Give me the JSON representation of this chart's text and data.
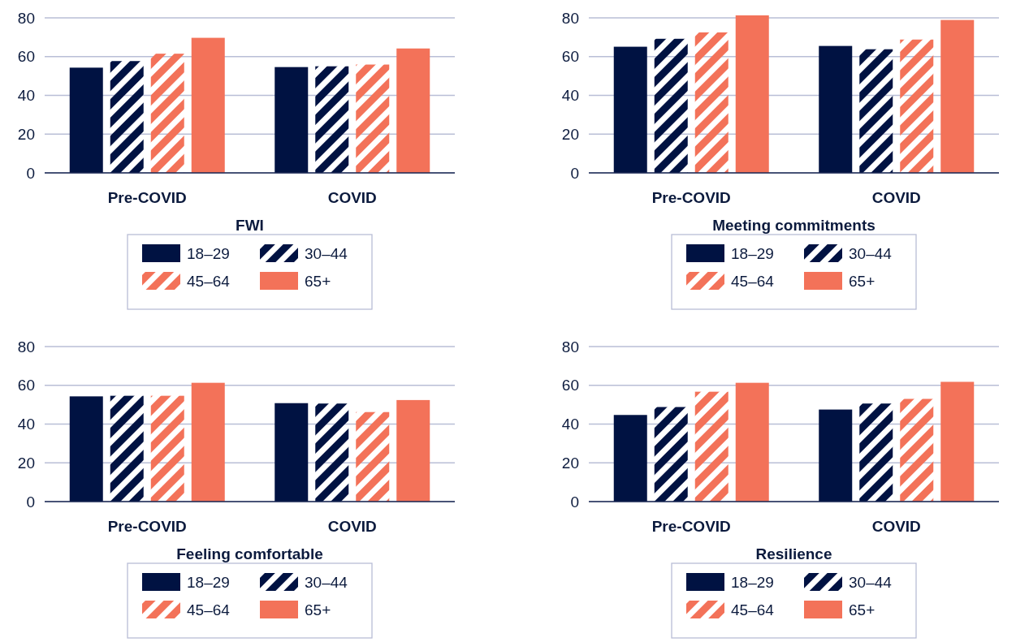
{
  "chart_data": [
    {
      "type": "bar",
      "xlabel": "FWI",
      "categories": [
        "Pre-COVID",
        "COVID"
      ],
      "ylim": [
        0,
        80
      ],
      "yticks": [
        0,
        20,
        40,
        60,
        80
      ],
      "grid": "y",
      "legend": "bottom",
      "series": [
        {
          "name": "18–29",
          "color": "#001242",
          "values": [
            54.3,
            54.6
          ]
        },
        {
          "name": "30–44",
          "color": "#001242",
          "line_style": "dashed",
          "values": [
            57.7,
            55.0
          ]
        },
        {
          "name": "45–64",
          "color": "#f37259",
          "line_style": "dashed",
          "values": [
            61.5,
            55.9
          ]
        },
        {
          "name": "65+",
          "color": "#f37259",
          "values": [
            69.7,
            64.2
          ]
        }
      ]
    },
    {
      "type": "bar",
      "xlabel": "Meeting commitments",
      "categories": [
        "Pre-COVID",
        "COVID"
      ],
      "ylim": [
        0,
        82
      ],
      "yticks": [
        0,
        20,
        40,
        60,
        80
      ],
      "grid": "y",
      "legend": "bottom",
      "series": [
        {
          "name": "18–29",
          "color": "#001242",
          "values": [
            65.1,
            65.5
          ]
        },
        {
          "name": "30–44",
          "color": "#001242",
          "line_style": "dashed",
          "values": [
            69.2,
            63.8
          ]
        },
        {
          "name": "45–64",
          "color": "#f37259",
          "line_style": "dashed",
          "values": [
            72.5,
            68.8
          ]
        },
        {
          "name": "65+",
          "color": "#f37259",
          "values": [
            81.3,
            78.9
          ]
        }
      ]
    },
    {
      "type": "bar",
      "xlabel": "Feeling comfortable",
      "categories": [
        "Pre-COVID",
        "COVID"
      ],
      "ylim": [
        0,
        80
      ],
      "yticks": [
        0,
        20,
        40,
        60,
        80
      ],
      "grid": "y",
      "legend": "bottom",
      "series": [
        {
          "name": "18–29",
          "color": "#001242",
          "values": [
            54.3,
            50.8
          ]
        },
        {
          "name": "30–44",
          "color": "#001242",
          "line_style": "dashed",
          "values": [
            54.6,
            50.6
          ]
        },
        {
          "name": "45–64",
          "color": "#f37259",
          "line_style": "dashed",
          "values": [
            54.6,
            46.2
          ]
        },
        {
          "name": "65+",
          "color": "#f37259",
          "values": [
            61.3,
            52.4
          ]
        }
      ]
    },
    {
      "type": "bar",
      "xlabel": "Resilience",
      "categories": [
        "Pre-COVID",
        "COVID"
      ],
      "ylim": [
        0,
        80
      ],
      "yticks": [
        0,
        20,
        40,
        60,
        80
      ],
      "grid": "y",
      "legend": "bottom",
      "series": [
        {
          "name": "18–29",
          "color": "#001242",
          "values": [
            44.7,
            47.5
          ]
        },
        {
          "name": "30–44",
          "color": "#001242",
          "line_style": "dashed",
          "values": [
            48.8,
            50.6
          ]
        },
        {
          "name": "45–64",
          "color": "#f37259",
          "line_style": "dashed",
          "values": [
            56.7,
            53.0
          ]
        },
        {
          "name": "65+",
          "color": "#f37259",
          "values": [
            61.3,
            61.8
          ]
        }
      ]
    }
  ]
}
